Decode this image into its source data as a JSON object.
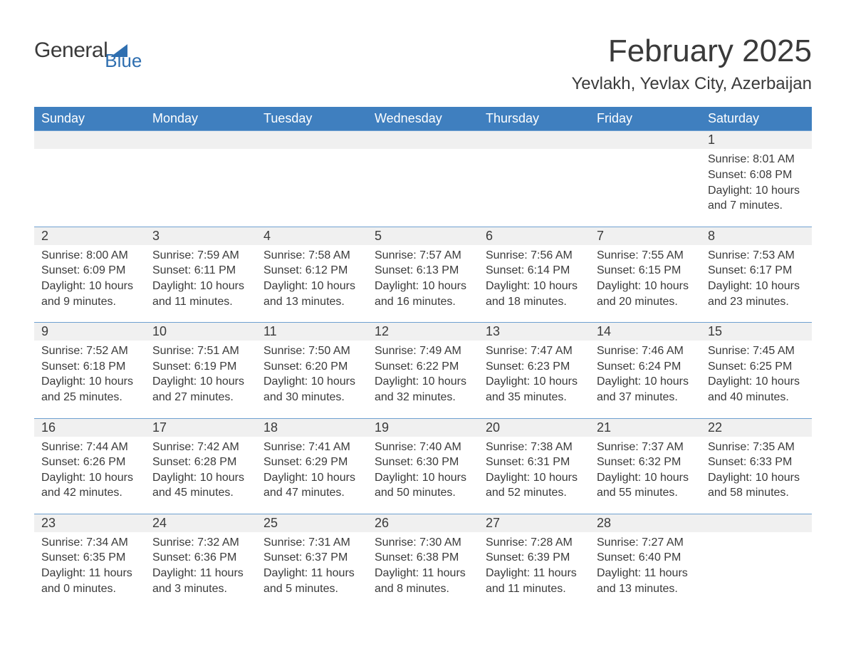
{
  "brand": {
    "word1": "General",
    "word2": "Blue",
    "sail_color": "#2f6fb0",
    "blue_text_color": "#2f6fb0"
  },
  "title": {
    "month_year": "February 2025",
    "location": "Yevlakh, Yevlax City, Azerbaijan"
  },
  "calendar": {
    "type": "table",
    "header_bg": "#3f7fbf",
    "header_fg": "#ffffff",
    "daynum_bg": "#f0f0f0",
    "row_border_color": "#6fa0d0",
    "text_color": "#3a3a3a",
    "font_family": "Segoe UI",
    "columns": [
      "Sunday",
      "Monday",
      "Tuesday",
      "Wednesday",
      "Thursday",
      "Friday",
      "Saturday"
    ],
    "weeks": [
      [
        null,
        null,
        null,
        null,
        null,
        null,
        {
          "day": "1",
          "sunrise": "Sunrise: 8:01 AM",
          "sunset": "Sunset: 6:08 PM",
          "daylight": "Daylight: 10 hours and 7 minutes."
        }
      ],
      [
        {
          "day": "2",
          "sunrise": "Sunrise: 8:00 AM",
          "sunset": "Sunset: 6:09 PM",
          "daylight": "Daylight: 10 hours and 9 minutes."
        },
        {
          "day": "3",
          "sunrise": "Sunrise: 7:59 AM",
          "sunset": "Sunset: 6:11 PM",
          "daylight": "Daylight: 10 hours and 11 minutes."
        },
        {
          "day": "4",
          "sunrise": "Sunrise: 7:58 AM",
          "sunset": "Sunset: 6:12 PM",
          "daylight": "Daylight: 10 hours and 13 minutes."
        },
        {
          "day": "5",
          "sunrise": "Sunrise: 7:57 AM",
          "sunset": "Sunset: 6:13 PM",
          "daylight": "Daylight: 10 hours and 16 minutes."
        },
        {
          "day": "6",
          "sunrise": "Sunrise: 7:56 AM",
          "sunset": "Sunset: 6:14 PM",
          "daylight": "Daylight: 10 hours and 18 minutes."
        },
        {
          "day": "7",
          "sunrise": "Sunrise: 7:55 AM",
          "sunset": "Sunset: 6:15 PM",
          "daylight": "Daylight: 10 hours and 20 minutes."
        },
        {
          "day": "8",
          "sunrise": "Sunrise: 7:53 AM",
          "sunset": "Sunset: 6:17 PM",
          "daylight": "Daylight: 10 hours and 23 minutes."
        }
      ],
      [
        {
          "day": "9",
          "sunrise": "Sunrise: 7:52 AM",
          "sunset": "Sunset: 6:18 PM",
          "daylight": "Daylight: 10 hours and 25 minutes."
        },
        {
          "day": "10",
          "sunrise": "Sunrise: 7:51 AM",
          "sunset": "Sunset: 6:19 PM",
          "daylight": "Daylight: 10 hours and 27 minutes."
        },
        {
          "day": "11",
          "sunrise": "Sunrise: 7:50 AM",
          "sunset": "Sunset: 6:20 PM",
          "daylight": "Daylight: 10 hours and 30 minutes."
        },
        {
          "day": "12",
          "sunrise": "Sunrise: 7:49 AM",
          "sunset": "Sunset: 6:22 PM",
          "daylight": "Daylight: 10 hours and 32 minutes."
        },
        {
          "day": "13",
          "sunrise": "Sunrise: 7:47 AM",
          "sunset": "Sunset: 6:23 PM",
          "daylight": "Daylight: 10 hours and 35 minutes."
        },
        {
          "day": "14",
          "sunrise": "Sunrise: 7:46 AM",
          "sunset": "Sunset: 6:24 PM",
          "daylight": "Daylight: 10 hours and 37 minutes."
        },
        {
          "day": "15",
          "sunrise": "Sunrise: 7:45 AM",
          "sunset": "Sunset: 6:25 PM",
          "daylight": "Daylight: 10 hours and 40 minutes."
        }
      ],
      [
        {
          "day": "16",
          "sunrise": "Sunrise: 7:44 AM",
          "sunset": "Sunset: 6:26 PM",
          "daylight": "Daylight: 10 hours and 42 minutes."
        },
        {
          "day": "17",
          "sunrise": "Sunrise: 7:42 AM",
          "sunset": "Sunset: 6:28 PM",
          "daylight": "Daylight: 10 hours and 45 minutes."
        },
        {
          "day": "18",
          "sunrise": "Sunrise: 7:41 AM",
          "sunset": "Sunset: 6:29 PM",
          "daylight": "Daylight: 10 hours and 47 minutes."
        },
        {
          "day": "19",
          "sunrise": "Sunrise: 7:40 AM",
          "sunset": "Sunset: 6:30 PM",
          "daylight": "Daylight: 10 hours and 50 minutes."
        },
        {
          "day": "20",
          "sunrise": "Sunrise: 7:38 AM",
          "sunset": "Sunset: 6:31 PM",
          "daylight": "Daylight: 10 hours and 52 minutes."
        },
        {
          "day": "21",
          "sunrise": "Sunrise: 7:37 AM",
          "sunset": "Sunset: 6:32 PM",
          "daylight": "Daylight: 10 hours and 55 minutes."
        },
        {
          "day": "22",
          "sunrise": "Sunrise: 7:35 AM",
          "sunset": "Sunset: 6:33 PM",
          "daylight": "Daylight: 10 hours and 58 minutes."
        }
      ],
      [
        {
          "day": "23",
          "sunrise": "Sunrise: 7:34 AM",
          "sunset": "Sunset: 6:35 PM",
          "daylight": "Daylight: 11 hours and 0 minutes."
        },
        {
          "day": "24",
          "sunrise": "Sunrise: 7:32 AM",
          "sunset": "Sunset: 6:36 PM",
          "daylight": "Daylight: 11 hours and 3 minutes."
        },
        {
          "day": "25",
          "sunrise": "Sunrise: 7:31 AM",
          "sunset": "Sunset: 6:37 PM",
          "daylight": "Daylight: 11 hours and 5 minutes."
        },
        {
          "day": "26",
          "sunrise": "Sunrise: 7:30 AM",
          "sunset": "Sunset: 6:38 PM",
          "daylight": "Daylight: 11 hours and 8 minutes."
        },
        {
          "day": "27",
          "sunrise": "Sunrise: 7:28 AM",
          "sunset": "Sunset: 6:39 PM",
          "daylight": "Daylight: 11 hours and 11 minutes."
        },
        {
          "day": "28",
          "sunrise": "Sunrise: 7:27 AM",
          "sunset": "Sunset: 6:40 PM",
          "daylight": "Daylight: 11 hours and 13 minutes."
        },
        null
      ]
    ]
  }
}
